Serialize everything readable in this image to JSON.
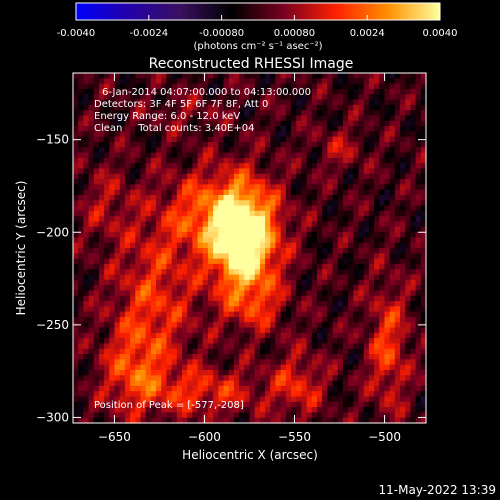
{
  "chart_data": {
    "type": "heatmap",
    "title": "Reconstructed RHESSI Image",
    "xlabel": "Heliocentric X (arcsec)",
    "ylabel": "Heliocentric Y (arcsec)",
    "xlim": [
      -673,
      -477
    ],
    "ylim": [
      -303,
      -114
    ],
    "xticks": [
      -650,
      -600,
      -550,
      -500
    ],
    "yticks": [
      -150,
      -200,
      -250,
      -300
    ],
    "colorbar": {
      "range": [
        -0.004,
        0.004
      ],
      "tick_labels": [
        "-0.0040",
        "-0.0024",
        "-0.00080",
        "0.00080",
        "0.0024",
        "0.0040"
      ],
      "unit_label": "(photons cm⁻² s⁻¹ asec⁻²)",
      "colormap": [
        "#0000ff",
        "#2200aa",
        "#3a1060",
        "#000000",
        "#7a0020",
        "#ff2000",
        "#ff9000",
        "#ffffa0"
      ]
    },
    "annotations": [
      "6-Jan-2014 04:07:00.000 to 04:13:00.000",
      "Detectors: 3F 4F 5F 6F 7F 8F, Att 0",
      "Energy Range: 6.0 - 12.0 keV",
      "Clean     Total counts: 3.40E+04"
    ],
    "peak_label": "Position of Peak = [-577,-208]",
    "peak": {
      "x": -577,
      "y": -208,
      "value": 0.004
    },
    "sources": [
      {
        "x": -578,
        "y": -205,
        "sx": 13,
        "sy": 20,
        "value": 0.0046
      },
      {
        "x": -596,
        "y": -190,
        "sx": 20,
        "sy": 16,
        "value": 0.002
      },
      {
        "x": -628,
        "y": -237,
        "sx": 16,
        "sy": 28,
        "value": 0.0017
      },
      {
        "x": -640,
        "y": -275,
        "sx": 12,
        "sy": 16,
        "value": 0.0016
      },
      {
        "x": -600,
        "y": -286,
        "sx": 24,
        "sy": 9,
        "value": 0.0016
      },
      {
        "x": -548,
        "y": -282,
        "sx": 10,
        "sy": 12,
        "value": 0.0015
      },
      {
        "x": -498,
        "y": -262,
        "sx": 8,
        "sy": 24,
        "value": 0.0018
      },
      {
        "x": -572,
        "y": -240,
        "sx": 12,
        "sy": 10,
        "value": 0.0012
      },
      {
        "x": -525,
        "y": -155,
        "sx": 10,
        "sy": 8,
        "value": 0.0009
      },
      {
        "x": -655,
        "y": -185,
        "sx": 10,
        "sy": 14,
        "value": 0.0009
      },
      {
        "x": -610,
        "y": -135,
        "sx": 14,
        "sy": 7,
        "value": 0.0006
      }
    ]
  },
  "footer": {
    "timestamp": "11-May-2022 13:39"
  }
}
